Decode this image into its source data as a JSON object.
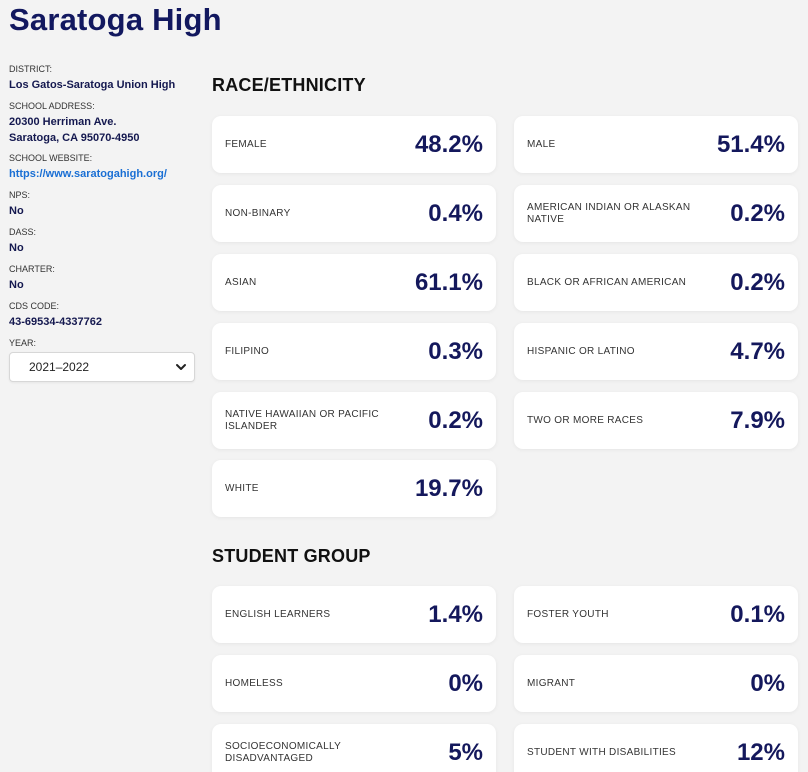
{
  "school": {
    "name": "Saratoga High"
  },
  "sidebar": {
    "district_label": "DISTRICT:",
    "district_value": "Los Gatos-Saratoga Union High",
    "address_label": "SCHOOL ADDRESS:",
    "address_line1": "20300 Herriman Ave.",
    "address_line2": "Saratoga, CA 95070-4950",
    "website_label": "SCHOOL WEBSITE:",
    "website_value": "https://www.saratogahigh.org/",
    "nps_label": "NPS:",
    "nps_value": "No",
    "dass_label": "DASS:",
    "dass_value": "No",
    "charter_label": "CHARTER:",
    "charter_value": "No",
    "cds_label": "CDS CODE:",
    "cds_value": "43-69534-4337762",
    "year_label": "YEAR:",
    "year_selected": "2021–2022"
  },
  "race": {
    "title": "RACE/ETHNICITY",
    "cards": [
      {
        "label": "FEMALE",
        "value": "48.2%"
      },
      {
        "label": "MALE",
        "value": "51.4%"
      },
      {
        "label": "NON-BINARY",
        "value": "0.4%"
      },
      {
        "label": "AMERICAN INDIAN OR ALASKAN NATIVE",
        "value": "0.2%"
      },
      {
        "label": "ASIAN",
        "value": "61.1%"
      },
      {
        "label": "BLACK OR AFRICAN AMERICAN",
        "value": "0.2%"
      },
      {
        "label": "FILIPINO",
        "value": "0.3%"
      },
      {
        "label": "HISPANIC OR LATINO",
        "value": "4.7%"
      },
      {
        "label": "NATIVE HAWAIIAN OR PACIFIC ISLANDER",
        "value": "0.2%"
      },
      {
        "label": "TWO OR MORE RACES",
        "value": "7.9%"
      },
      {
        "label": "WHITE",
        "value": "19.7%"
      }
    ]
  },
  "student_group": {
    "title": "STUDENT GROUP",
    "cards": [
      {
        "label": "ENGLISH LEARNERS",
        "value": "1.4%"
      },
      {
        "label": "FOSTER YOUTH",
        "value": "0.1%"
      },
      {
        "label": "HOMELESS",
        "value": "0%"
      },
      {
        "label": "MIGRANT",
        "value": "0%"
      },
      {
        "label": "SOCIOECONOMICALLY DISADVANTAGED",
        "value": "5%"
      },
      {
        "label": "STUDENT WITH DISABILITIES",
        "value": "12%"
      }
    ]
  },
  "colors": {
    "title": "#12185f",
    "value": "#14185c",
    "link": "#1a6fd4",
    "background": "#f3f3f3"
  },
  "icons": {
    "year_select": "chevron-down-icon"
  }
}
